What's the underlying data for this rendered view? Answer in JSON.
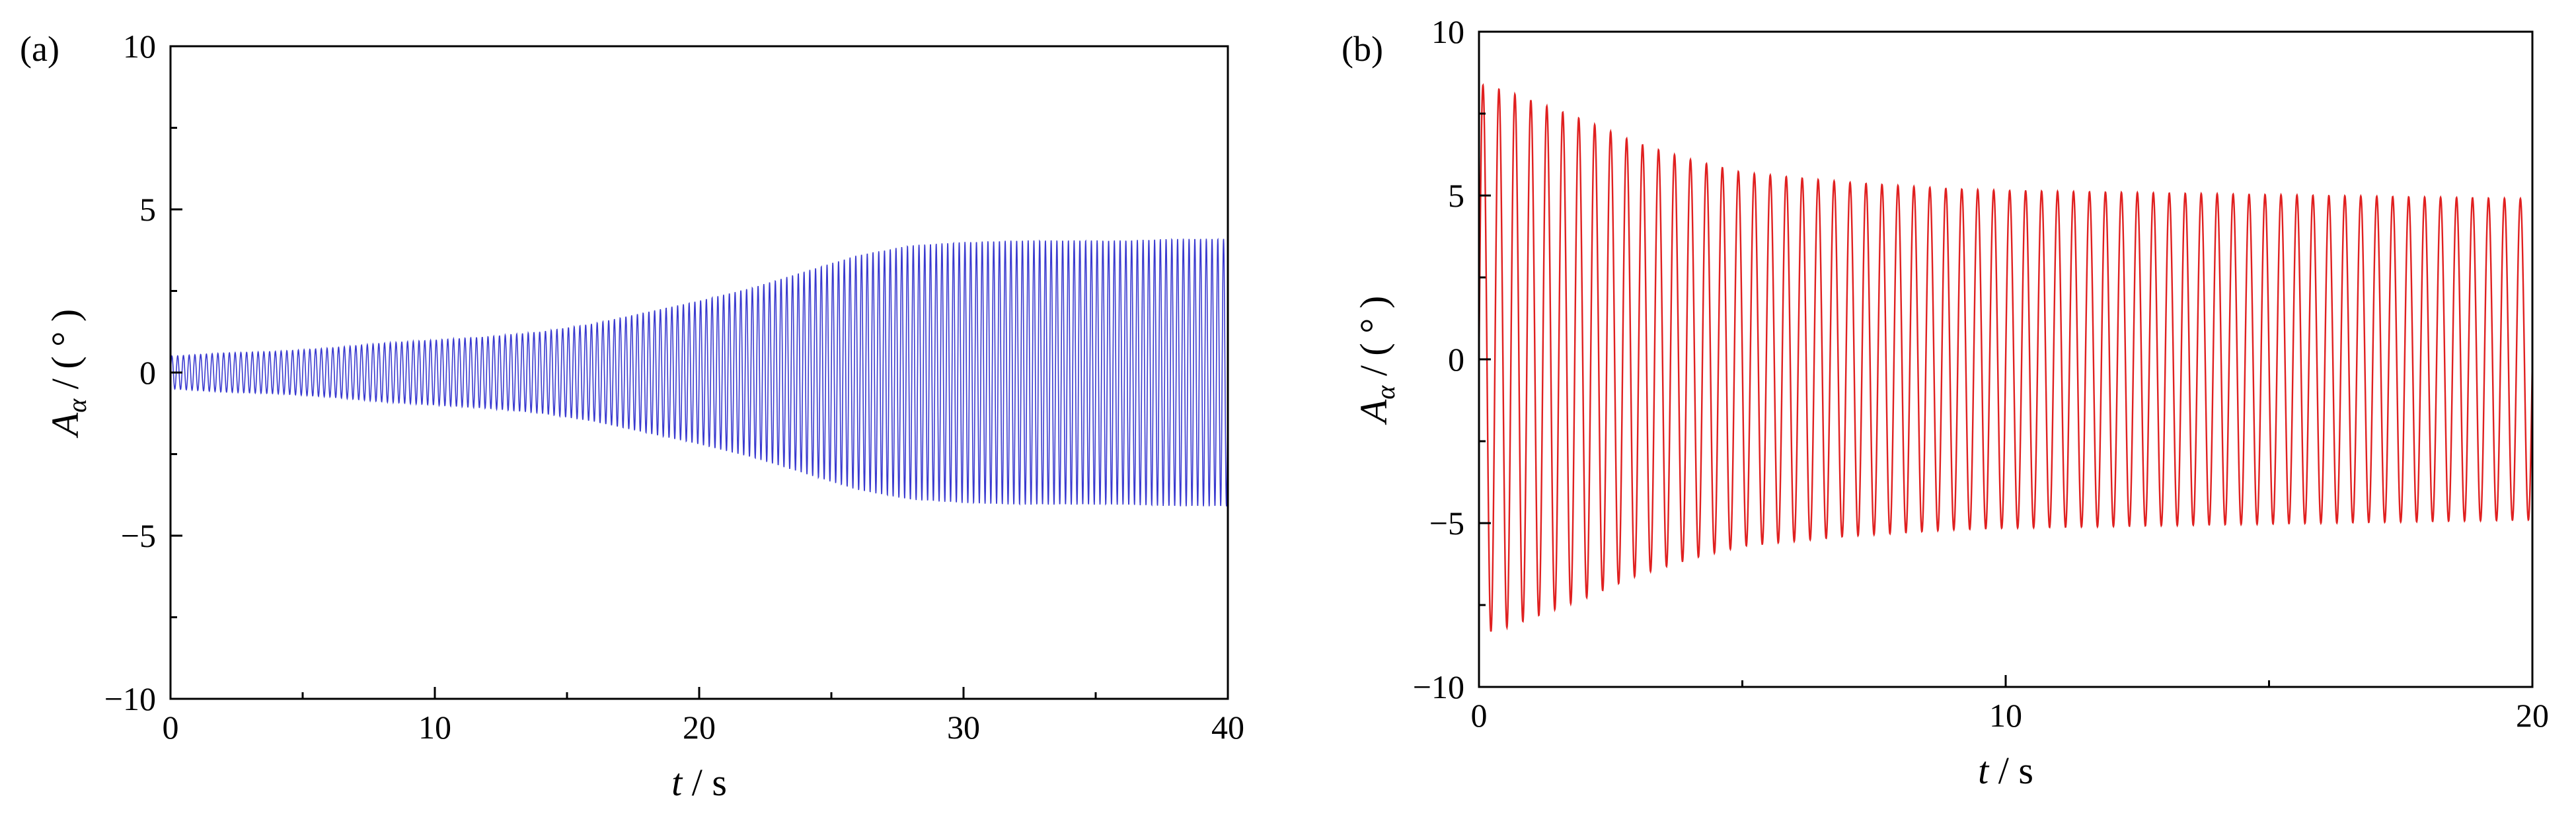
{
  "chart_data": [
    {
      "type": "line",
      "panel_label": "(a)",
      "xlabel_var": "t",
      "xlabel_unit": " / s",
      "ylabel_var": "A",
      "ylabel_sub": "α",
      "ylabel_unit": " / ( ° )",
      "xlim": [
        0,
        40
      ],
      "ylim": [
        -10,
        10
      ],
      "x_ticks": [
        0,
        10,
        20,
        30,
        40
      ],
      "x_tick_labels": [
        "0",
        "10",
        "20",
        "30",
        "40"
      ],
      "y_ticks": [
        -10,
        -5,
        0,
        5,
        10
      ],
      "y_tick_labels": [
        "−10",
        "−5",
        "0",
        "5",
        "10"
      ],
      "grid": false,
      "series": [
        {
          "color": "#3a3ad0",
          "oscillation_frequency_hz": 4.6,
          "amplitude_envelope": {
            "t": [
              0,
              2,
              4,
              6,
              8,
              10,
              12,
              14,
              16,
              18,
              20,
              22,
              24,
              26,
              28,
              30,
              32,
              34,
              36,
              38,
              40
            ],
            "amplitude": [
              0.5,
              0.6,
              0.65,
              0.75,
              0.9,
              1.0,
              1.1,
              1.25,
              1.5,
              1.85,
              2.2,
              2.6,
              3.1,
              3.6,
              3.9,
              4.0,
              4.05,
              4.05,
              4.05,
              4.1,
              4.1
            ]
          }
        }
      ]
    },
    {
      "type": "line",
      "panel_label": "(b)",
      "xlabel_var": "t",
      "xlabel_unit": " / s",
      "ylabel_var": "A",
      "ylabel_sub": "α",
      "ylabel_unit": " / ( ° )",
      "xlim": [
        0,
        20
      ],
      "ylim": [
        -10,
        10
      ],
      "x_ticks": [
        0,
        10,
        20
      ],
      "x_tick_labels": [
        "0",
        "10",
        "20"
      ],
      "y_ticks": [
        -10,
        -5,
        0,
        5,
        10
      ],
      "y_tick_labels": [
        "−10",
        "−5",
        "0",
        "5",
        "10"
      ],
      "grid": false,
      "series": [
        {
          "color": "#e02020",
          "oscillation_frequency_hz": 3.3,
          "amplitude_envelope": {
            "t": [
              0,
              0.5,
              1,
              2,
              3,
              4,
              5,
              6,
              7,
              8,
              9,
              10,
              12,
              14,
              16,
              18,
              20
            ],
            "amplitude": [
              8.4,
              8.2,
              7.9,
              7.3,
              6.6,
              6.1,
              5.7,
              5.55,
              5.4,
              5.3,
              5.2,
              5.15,
              5.1,
              5.05,
              5.0,
              4.95,
              4.9
            ]
          }
        }
      ]
    }
  ]
}
